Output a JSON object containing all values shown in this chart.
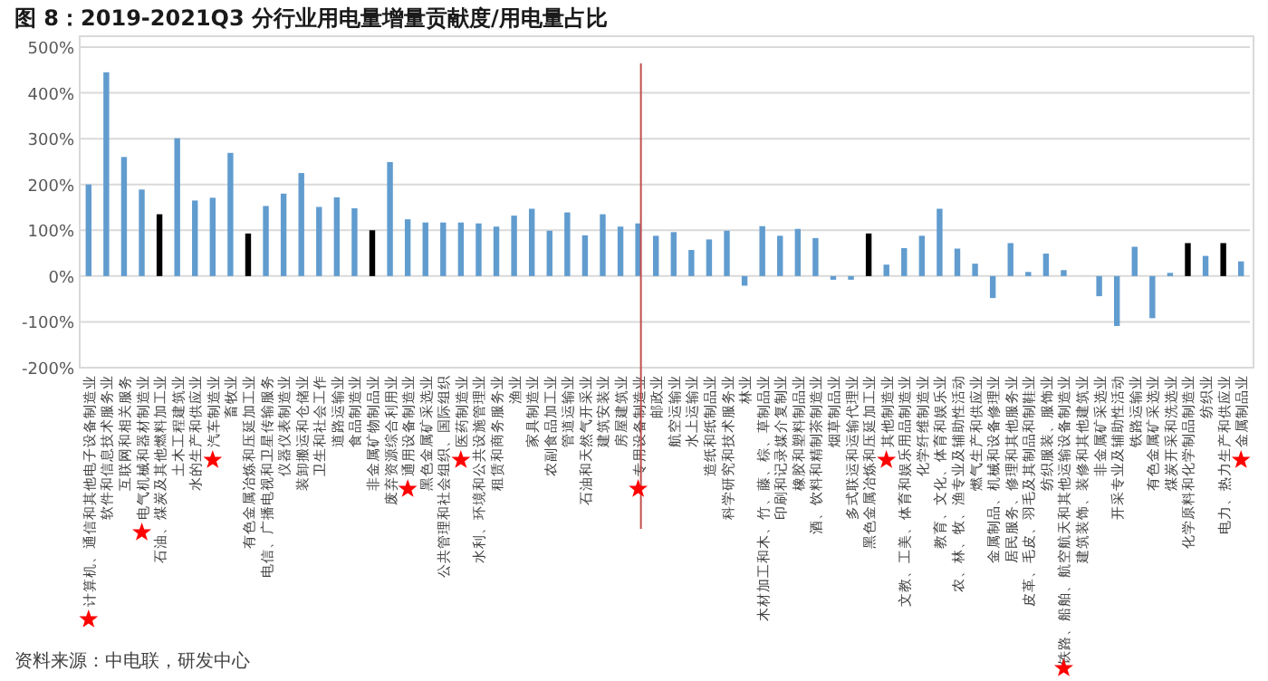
{
  "chart_data": {
    "type": "bar",
    "title": "图 8：2019-2021Q3 分行业用电量增量贡献度/用电量占比",
    "categories": [
      "计算机、通信和其他电子设备制造业",
      "软件和信息技术服务业",
      "互联网和相关服务",
      "电气机械和器材制造业",
      "石油、煤炭及其他燃料加工业",
      "土木工程建筑业",
      "水的生产和供应业",
      "汽车制造业",
      "畜牧业",
      "有色金属冶炼和压延加工业",
      "电信、广播电视和卫星传输服务",
      "仪器仪表制造业",
      "装卸搬运和仓储业",
      "卫生和社会工作",
      "道路运输业",
      "食品制造业",
      "非金属矿物制品业",
      "废弃资源综合利用业",
      "通用设备制造业",
      "黑色金属矿采选业",
      "公共管理和社会组织、国际组织",
      "医药制造业",
      "水利、环境和公共设施管理业",
      "租赁和商务服务业",
      "渔业",
      "家具制造业",
      "农副食品加工业",
      "管道运输业",
      "石油和天然气开采业",
      "建筑安装业",
      "房屋建筑业",
      "专用设备制造业",
      "邮政业",
      "航空运输业",
      "水上运输业",
      "造纸和纸制品业",
      "科学研究和技术服务业",
      "林业",
      "木材加工和木、竹、藤、棕、草制品业",
      "印刷和记录媒介复制业",
      "橡胶和塑料制品业",
      "酒、饮料和精制茶制造业",
      "烟草制品业",
      "多式联运和运输代理业",
      "黑色金属冶炼和压延加工业",
      "其他制造业",
      "文教、工美、体育和娱乐用品制造业",
      "化学纤维制造业",
      "教育、文化、体育和娱乐业",
      "农、林、牧、渔专业及辅助性活动",
      "燃气生产和供应业",
      "金属制品、机械和设备修理业",
      "居民服务、修理和其他服务业",
      "皮革、毛皮、羽毛及其制品和制鞋业",
      "纺织服装、服饰业",
      "铁路、船舶、航空航天和其他运输设备制造业",
      "建筑装饰、装修和其他建筑业",
      "非金属矿采选业",
      "开采专业及辅助性活动",
      "铁路运输业",
      "有色金属矿采选业",
      "煤炭开采和洗选业",
      "化学原料和化学制品制造业",
      "纺织业",
      "电力、热力生产和供应业",
      "金属制品业"
    ],
    "values": [
      200,
      445,
      260,
      189,
      135,
      301,
      165,
      171,
      269,
      93,
      153,
      180,
      225,
      151,
      172,
      148,
      100,
      249,
      124,
      117,
      117,
      117,
      115,
      108,
      132,
      147,
      99,
      139,
      89,
      135,
      108,
      115,
      88,
      96,
      57,
      80,
      99,
      -21,
      109,
      88,
      103,
      83,
      -8,
      -8,
      93,
      25,
      61,
      88,
      147,
      60,
      27,
      -48,
      72,
      9,
      49,
      13,
      0,
      -44,
      -109,
      64,
      -92,
      7,
      72,
      44,
      72,
      32
    ],
    "colors": [
      "#619ccf",
      "#619ccf",
      "#619ccf",
      "#619ccf",
      "#000000",
      "#619ccf",
      "#619ccf",
      "#619ccf",
      "#619ccf",
      "#000000",
      "#619ccf",
      "#619ccf",
      "#619ccf",
      "#619ccf",
      "#619ccf",
      "#619ccf",
      "#000000",
      "#619ccf",
      "#619ccf",
      "#619ccf",
      "#619ccf",
      "#619ccf",
      "#619ccf",
      "#619ccf",
      "#619ccf",
      "#619ccf",
      "#619ccf",
      "#619ccf",
      "#619ccf",
      "#619ccf",
      "#619ccf",
      "#619ccf",
      "#619ccf",
      "#619ccf",
      "#619ccf",
      "#619ccf",
      "#619ccf",
      "#619ccf",
      "#619ccf",
      "#619ccf",
      "#619ccf",
      "#619ccf",
      "#619ccf",
      "#619ccf",
      "#000000",
      "#619ccf",
      "#619ccf",
      "#619ccf",
      "#619ccf",
      "#619ccf",
      "#619ccf",
      "#619ccf",
      "#619ccf",
      "#619ccf",
      "#619ccf",
      "#619ccf",
      "#619ccf",
      "#619ccf",
      "#619ccf",
      "#619ccf",
      "#619ccf",
      "#619ccf",
      "#000000",
      "#619ccf",
      "#000000",
      "#619ccf"
    ],
    "ylim": [
      -200,
      500
    ],
    "yticks": [
      {
        "value": -200,
        "label": "-200%"
      },
      {
        "value": -100,
        "label": "-100%"
      },
      {
        "value": 0,
        "label": "0%"
      },
      {
        "value": 100,
        "label": "100%"
      },
      {
        "value": 200,
        "label": "200%"
      },
      {
        "value": 300,
        "label": "300%"
      },
      {
        "value": 400,
        "label": "400%"
      },
      {
        "value": 500,
        "label": "500%"
      }
    ],
    "grid": "y",
    "ref_lines": [
      {
        "axis": "x",
        "value": "专用设备制造业",
        "color": "#c0504d"
      }
    ],
    "annotations": [
      "资料来源：中电联，研发中心"
    ]
  }
}
